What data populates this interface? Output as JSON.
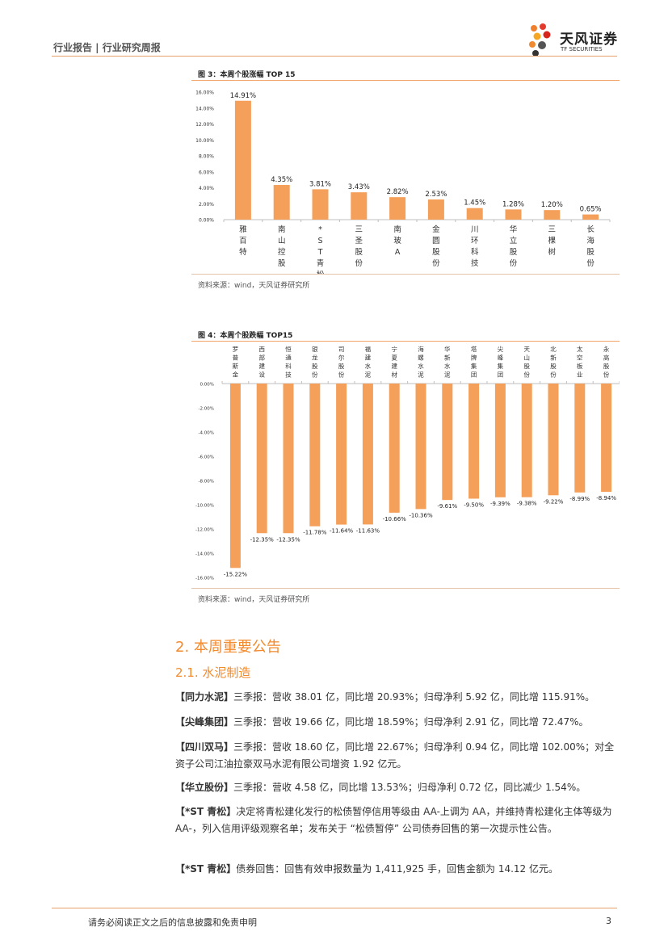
{
  "header": {
    "left": "行业报告 | 行业研究周报",
    "logo_name": "天风证券",
    "logo_sub": "TF SECURITIES"
  },
  "figure3": {
    "title": "图 3：本周个股涨幅 TOP 15",
    "source": "资料来源：wind，天风证券研究所"
  },
  "figure4": {
    "title": "图 4：本周个股跌幅 TOP15",
    "source": "资料来源：wind，天风证券研究所"
  },
  "chart_data": [
    {
      "type": "bar",
      "title": "本周个股涨幅 TOP 15",
      "color": "#f5a05a",
      "categories": [
        "雅百特",
        "南山控股",
        "*ST青松",
        "三圣股份",
        "南玻A",
        "金圆股份",
        "川环科技",
        "华立股份",
        "三棵树",
        "长海股份"
      ],
      "values": [
        14.91,
        4.35,
        3.81,
        3.43,
        2.82,
        2.53,
        1.45,
        1.28,
        1.2,
        0.65
      ],
      "value_labels": [
        "14.91%",
        "4.35%",
        "3.81%",
        "3.43%",
        "2.82%",
        "2.53%",
        "1.45%",
        "1.28%",
        "1.20%",
        "0.65%"
      ],
      "yticks": [
        "16.00%",
        "14.00%",
        "12.00%",
        "10.00%",
        "8.00%",
        "6.00%",
        "4.00%",
        "2.00%",
        "0.00%"
      ],
      "ylim": [
        0,
        16
      ]
    },
    {
      "type": "bar",
      "title": "本周个股跌幅 TOP15",
      "color": "#f5a05a",
      "categories": [
        "罗普斯金",
        "西部建设",
        "恒通科技",
        "银龙股份",
        "司尔股份",
        "福建水泥",
        "宁夏建材",
        "海螺水泥",
        "华新水泥",
        "塔牌集团",
        "尖峰集团",
        "天山股份",
        "北新股份",
        "太空板业",
        "永高股份"
      ],
      "values": [
        -15.22,
        -12.35,
        -12.35,
        -11.78,
        -11.64,
        -11.63,
        -10.66,
        -10.36,
        -9.61,
        -9.5,
        -9.39,
        -9.38,
        -9.22,
        -8.99,
        -8.94
      ],
      "value_labels": [
        "-15.22%",
        "-12.35%",
        "-12.35%",
        "-11.78%",
        "-11.64%",
        "-11.63%",
        "-10.66%",
        "-10.36%",
        "-9.61%",
        "-9.50%",
        "-9.39%",
        "-9.38%",
        "-9.22%",
        "-8.99%",
        "-8.94%"
      ],
      "yticks": [
        "0.00%",
        "-2.00%",
        "-4.00%",
        "-6.00%",
        "-8.00%",
        "-10.00%",
        "-12.00%",
        "-14.00%",
        "-16.00%"
      ],
      "ylim": [
        -16,
        0
      ]
    }
  ],
  "section": {
    "h2": "2. 本周重要公告",
    "h3": "2.1. 水泥制造"
  },
  "paragraphs": [
    {
      "tag": "【同力水泥】",
      "text": "三季报：营收 38.01 亿，同比增 20.93%；归母净利 5.92 亿，同比增 115.91%。"
    },
    {
      "tag": "【尖峰集团】",
      "text": "三季报：营收 19.66 亿，同比增 18.59%；归母净利 2.91 亿，同比增 72.47%。"
    },
    {
      "tag": "【四川双马】",
      "text": "三季报：营收 18.60 亿，同比增 22.67%；归母净利 0.94 亿，同比增 102.00%；对全资子公司江油拉豪双马水泥有限公司增资 1.92 亿元。"
    },
    {
      "tag": "【华立股份】",
      "text": "三季报：营收 4.58 亿，同比增 13.53%；归母净利 0.72 亿，同比减少 1.54%。"
    },
    {
      "tag": "【*ST 青松】",
      "text": "决定将青松建化发行的松债暂停信用等级由 AA-上调为 AA，并维持青松建化主体等级为 AA-，列入信用评级观察名单；发布关于 “松债暂停” 公司债券回售的第一次提示性公告。"
    },
    {
      "tag": "【*ST 青松】",
      "text": "债券回售：回售有效申报数量为 1,411,925 手，回售金额为 14.12 亿元。"
    }
  ],
  "footer": {
    "disclaimer": "请务必阅读正文之后的信息披露和免责申明",
    "page": "3"
  }
}
